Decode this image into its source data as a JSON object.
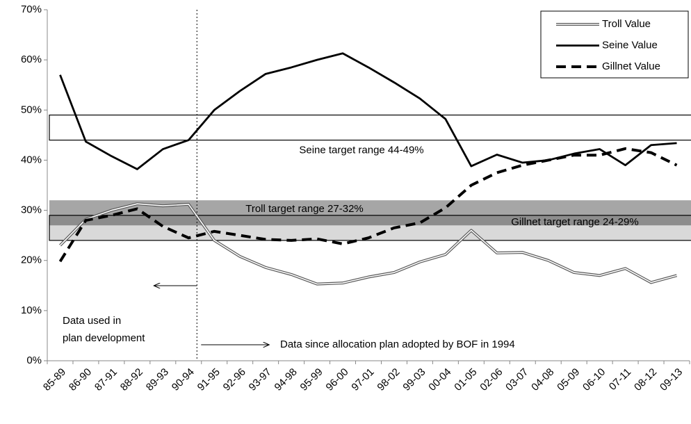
{
  "chart_data": {
    "type": "line",
    "categories": [
      "85-89",
      "86-90",
      "87-91",
      "88-92",
      "89-93",
      "90-94",
      "91-95",
      "92-96",
      "93-97",
      "94-98",
      "95-99",
      "96-00",
      "97-01",
      "98-02",
      "99-03",
      "00-04",
      "01-05",
      "02-06",
      "03-07",
      "04-08",
      "05-09",
      "06-10",
      "07-11",
      "08-12",
      "09-13"
    ],
    "series": [
      {
        "name": "Troll Value",
        "color": "#595959",
        "style": "double",
        "values": [
          23,
          28.2,
          30,
          31.3,
          30.9,
          31.2,
          24,
          20.8,
          18.6,
          17.2,
          15.3,
          15.5,
          16.7,
          17.6,
          19.7,
          21.2,
          26,
          21.5,
          21.6,
          20,
          17.6,
          17,
          18.4,
          15.6,
          17
        ]
      },
      {
        "name": "Seine Value",
        "color": "#000000",
        "style": "solid",
        "values": [
          57,
          43.7,
          40.8,
          38.2,
          42.2,
          44,
          50,
          53.8,
          57.2,
          58.5,
          60,
          61.3,
          58.5,
          55.5,
          52.3,
          48.2,
          38.8,
          41.1,
          39.5,
          40,
          41.3,
          42.2,
          39,
          43,
          43.4
        ]
      },
      {
        "name": "Gillnet Value",
        "color": "#000000",
        "style": "dashed",
        "values": [
          19.8,
          28,
          29,
          30.3,
          26.8,
          24.5,
          25.8,
          25,
          24.2,
          24,
          24.3,
          23.3,
          24.5,
          26.5,
          27.5,
          30.5,
          35,
          37.5,
          39,
          40,
          41,
          41,
          42.3,
          41.5,
          39
        ]
      }
    ],
    "bands": [
      {
        "label": "Gillnet target range 24-29%",
        "range": [
          24,
          29
        ],
        "color": "#d9d9d9",
        "border": "#000000"
      },
      {
        "label": "Troll target range 27-32%",
        "range": [
          27,
          32
        ],
        "color": "rgba(0,0,0,0.35)",
        "border": "none"
      },
      {
        "label": "Seine target range 44-49%",
        "range": [
          44,
          49
        ],
        "color": "#ffffff",
        "border": "#000000"
      }
    ],
    "annotations": {
      "before": [
        "Data used in",
        "plan development"
      ],
      "after": "Data since allocation plan adopted by BOF in 1994"
    },
    "ylim": [
      0,
      70
    ],
    "yticks": [
      {
        "value": 0,
        "label": "0%"
      },
      {
        "value": 10,
        "label": "10%"
      },
      {
        "value": 20,
        "label": "20%"
      },
      {
        "value": 30,
        "label": "30%"
      },
      {
        "value": 40,
        "label": "40%"
      },
      {
        "value": 50,
        "label": "50%"
      },
      {
        "value": 60,
        "label": "60%"
      },
      {
        "value": 70,
        "label": "70%"
      }
    ],
    "legend": "top-right"
  }
}
